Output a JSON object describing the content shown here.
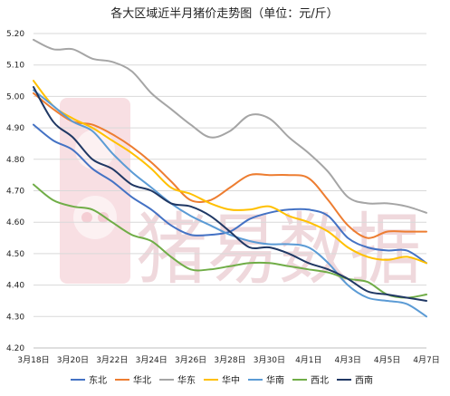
{
  "watermark": {
    "text": "猪易数据",
    "logo": "pig-logo",
    "color": "#e3b9c1"
  },
  "chart_data": {
    "type": "line",
    "title": "各大区域近半月猪价走势图（单位：元/斤）",
    "xlabel": "",
    "ylabel": "",
    "ylim": [
      4.2,
      5.2
    ],
    "yticks": [
      "5.20",
      "5.10",
      "5.00",
      "4.90",
      "4.80",
      "4.70",
      "4.60",
      "4.50",
      "4.40",
      "4.30",
      "4.20"
    ],
    "categories": [
      "3月18日",
      "3月19日",
      "3月20日",
      "3月21日",
      "3月22日",
      "3月23日",
      "3月24日",
      "3月25日",
      "3月26日",
      "3月27日",
      "3月28日",
      "3月29日",
      "3月30日",
      "3月31日",
      "4月1日",
      "4月2日",
      "4月3日",
      "4月4日",
      "4月5日",
      "4月6日",
      "4月7日"
    ],
    "xtick_labels": [
      "3月18日",
      "3月20日",
      "3月22日",
      "3月24日",
      "3月26日",
      "3月28日",
      "3月30日",
      "4月1日",
      "4月3日",
      "4月5日",
      "4月7日"
    ],
    "grid": {
      "horizontal": true,
      "vertical": false
    },
    "legend_position": "bottom",
    "series": [
      {
        "name": "东北",
        "color": "#4472c4",
        "values": [
          4.91,
          4.86,
          4.83,
          4.77,
          4.73,
          4.68,
          4.64,
          4.59,
          4.56,
          4.56,
          4.57,
          4.61,
          4.63,
          4.64,
          4.64,
          4.62,
          4.55,
          4.52,
          4.51,
          4.51,
          4.47
        ]
      },
      {
        "name": "华北",
        "color": "#ed7d31",
        "values": [
          5.01,
          4.96,
          4.92,
          4.91,
          4.88,
          4.84,
          4.79,
          4.73,
          4.67,
          4.67,
          4.71,
          4.75,
          4.75,
          4.75,
          4.74,
          4.67,
          4.59,
          4.55,
          4.57,
          4.57,
          4.57
        ]
      },
      {
        "name": "华东",
        "color": "#a5a5a5",
        "values": [
          5.18,
          5.15,
          5.15,
          5.12,
          5.11,
          5.08,
          5.01,
          4.96,
          4.91,
          4.87,
          4.89,
          4.94,
          4.93,
          4.87,
          4.82,
          4.76,
          4.68,
          4.66,
          4.66,
          4.65,
          4.63
        ]
      },
      {
        "name": "华中",
        "color": "#ffc000",
        "values": [
          5.05,
          4.97,
          4.93,
          4.9,
          4.86,
          4.82,
          4.77,
          4.71,
          4.69,
          4.66,
          4.64,
          4.64,
          4.65,
          4.62,
          4.6,
          4.57,
          4.52,
          4.49,
          4.48,
          4.49,
          4.47
        ]
      },
      {
        "name": "华南",
        "color": "#5b9bd5",
        "values": [
          5.02,
          4.97,
          4.92,
          4.89,
          4.82,
          4.76,
          4.71,
          4.66,
          4.62,
          4.59,
          4.56,
          4.54,
          4.53,
          4.53,
          4.52,
          4.47,
          4.4,
          4.36,
          4.35,
          4.34,
          4.3
        ]
      },
      {
        "name": "西北",
        "color": "#70ad47",
        "values": [
          4.72,
          4.67,
          4.65,
          4.64,
          4.6,
          4.56,
          4.54,
          4.49,
          4.45,
          4.45,
          4.46,
          4.47,
          4.47,
          4.46,
          4.45,
          4.44,
          4.42,
          4.41,
          4.37,
          4.36,
          4.37
        ]
      },
      {
        "name": "西南",
        "color": "#203864",
        "values": [
          5.03,
          4.92,
          4.87,
          4.8,
          4.77,
          4.72,
          4.7,
          4.66,
          4.65,
          4.62,
          4.57,
          4.52,
          4.52,
          4.5,
          4.47,
          4.45,
          4.42,
          4.38,
          4.37,
          4.36,
          4.35
        ]
      }
    ]
  }
}
